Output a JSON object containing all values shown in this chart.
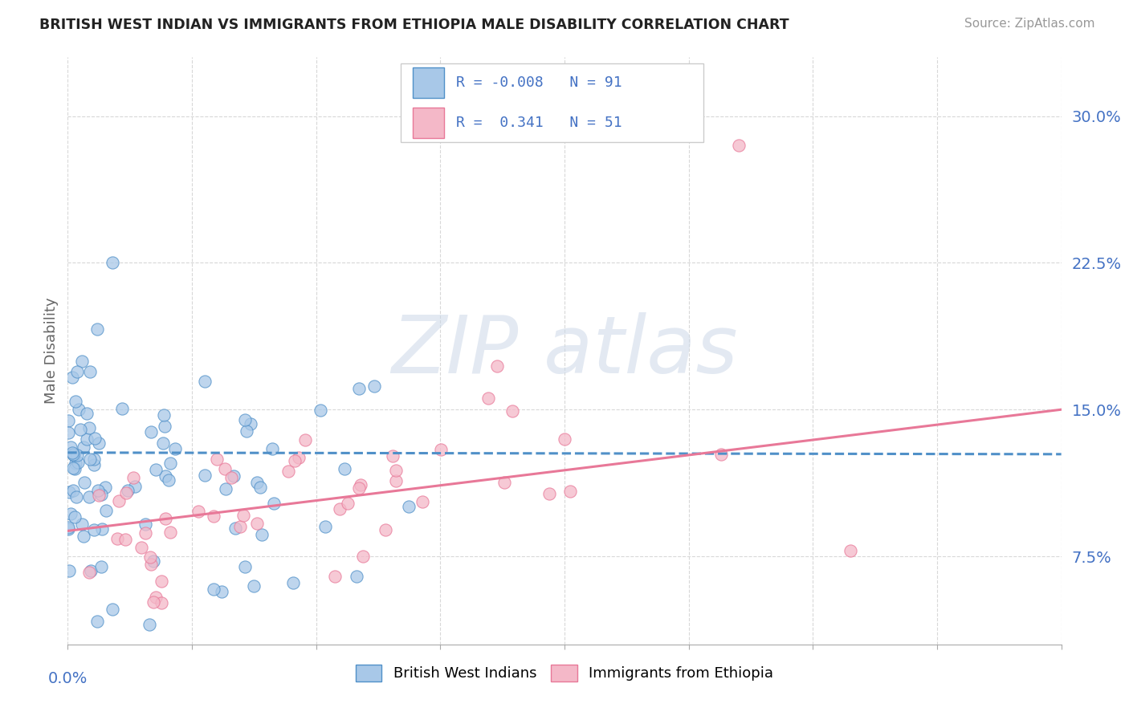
{
  "title": "BRITISH WEST INDIAN VS IMMIGRANTS FROM ETHIOPIA MALE DISABILITY CORRELATION CHART",
  "source": "Source: ZipAtlas.com",
  "ylabel": "Male Disability",
  "yticks": [
    0.075,
    0.15,
    0.225,
    0.3
  ],
  "ytick_labels": [
    "7.5%",
    "15.0%",
    "22.5%",
    "30.0%"
  ],
  "xlim": [
    0.0,
    0.4
  ],
  "ylim": [
    0.03,
    0.33
  ],
  "blue_R": -0.008,
  "blue_N": 91,
  "pink_R": 0.341,
  "pink_N": 51,
  "blue_scatter_color": "#a8c8e8",
  "pink_scatter_color": "#f4b8c8",
  "blue_line_color": "#5090c8",
  "pink_line_color": "#e87898",
  "blue_text_color": "#4472c4",
  "legend_label_blue": "British West Indians",
  "legend_label_pink": "Immigrants from Ethiopia",
  "background_color": "#ffffff",
  "grid_color": "#d8d8d8",
  "watermark_color": "#ccd8e8"
}
